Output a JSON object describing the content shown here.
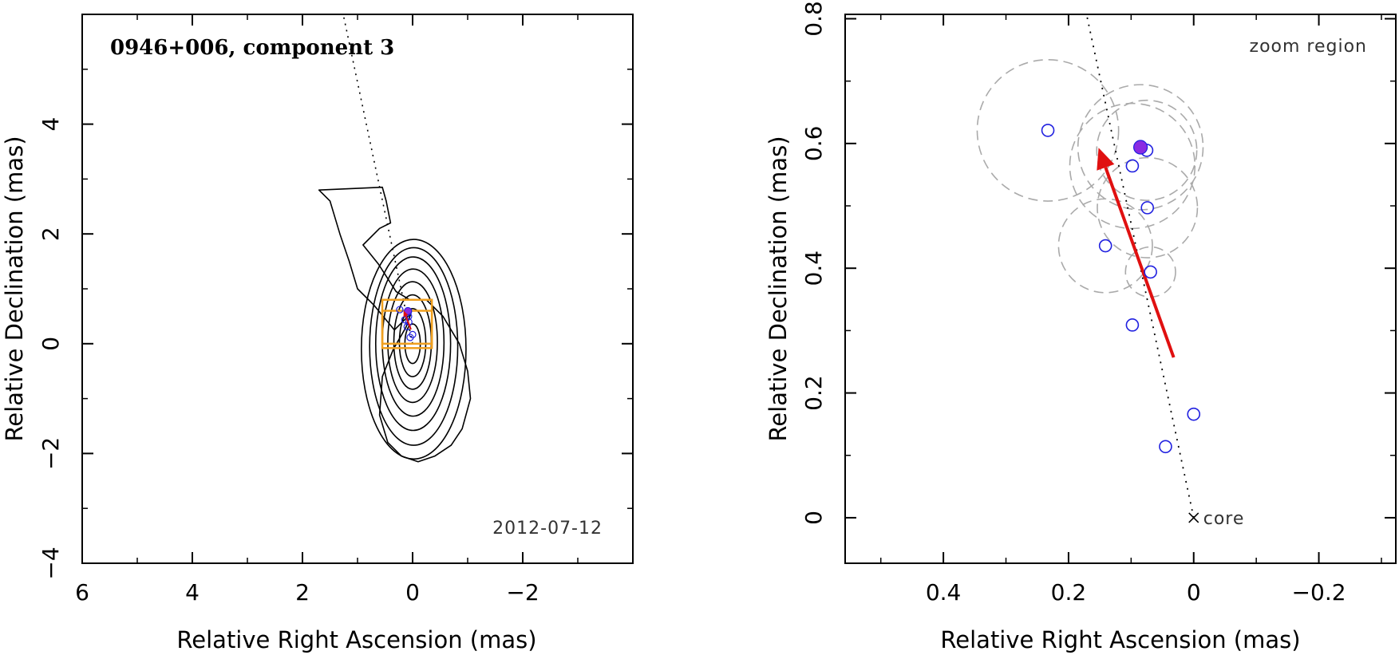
{
  "colors": {
    "axis": "#000000",
    "contour": "#000000",
    "box": "#f0a020",
    "arrow": "#e01010",
    "point": "#2020e0",
    "point_fill": "#8a2be2",
    "circle": "#aaaaaa"
  },
  "chart_data": [
    {
      "type": "contour",
      "title": "0946+006, component 3",
      "annotation": "2012-07-12",
      "xlabel": "Relative Right Ascension (mas)",
      "ylabel": "Relative Declination (mas)",
      "xlim": [
        6,
        -4
      ],
      "ylim": [
        -4,
        6
      ],
      "xticks": [
        6,
        4,
        2,
        0,
        -2
      ],
      "xtick_labels": [
        "6",
        "4",
        "2",
        "0",
        "−2"
      ],
      "yticks": [
        -4,
        -2,
        0,
        2,
        4
      ],
      "ytick_labels": [
        "−4",
        "−2",
        "0",
        "2",
        "4"
      ],
      "jet_direction": {
        "from": [
          0,
          0
        ],
        "to": [
          1.26,
          6.0
        ]
      },
      "outer_contour": [
        [
          0.03,
          0.55
        ],
        [
          0.33,
          0.25
        ],
        [
          0.7,
          0.7
        ],
        [
          1.0,
          1.0
        ],
        [
          1.15,
          1.5
        ],
        [
          1.32,
          2.0
        ],
        [
          1.5,
          2.6
        ],
        [
          1.7,
          2.8
        ],
        [
          0.55,
          2.85
        ],
        [
          0.48,
          2.6
        ],
        [
          0.4,
          2.2
        ],
        [
          0.6,
          2.1
        ],
        [
          0.9,
          1.8
        ],
        [
          0.62,
          1.45
        ],
        [
          0.3,
          0.95
        ],
        [
          0.05,
          0.8
        ],
        [
          -0.25,
          0.8
        ],
        [
          -0.55,
          0.5
        ],
        [
          -0.85,
          0.0
        ],
        [
          -1.0,
          -0.5
        ],
        [
          -1.05,
          -1.0
        ],
        [
          -0.9,
          -1.55
        ],
        [
          -0.7,
          -1.85
        ],
        [
          -0.4,
          -2.05
        ],
        [
          -0.1,
          -2.15
        ],
        [
          0.2,
          -2.05
        ],
        [
          0.45,
          -1.8
        ],
        [
          0.6,
          -1.3
        ],
        [
          0.55,
          -0.6
        ],
        [
          0.35,
          -0.1
        ],
        [
          0.12,
          0.3
        ]
      ],
      "contour_levels": [
        {
          "cx": -0.02,
          "cy": -0.1,
          "rx": 0.95,
          "ry": 2.0
        },
        {
          "cx": -0.02,
          "cy": -0.05,
          "rx": 0.8,
          "ry": 1.8
        },
        {
          "cx": -0.01,
          "cy": 0.0,
          "rx": 0.68,
          "ry": 1.58
        },
        {
          "cx": -0.01,
          "cy": 0.02,
          "rx": 0.56,
          "ry": 1.34
        },
        {
          "cx": 0.0,
          "cy": 0.03,
          "rx": 0.45,
          "ry": 1.1
        },
        {
          "cx": 0.0,
          "cy": 0.03,
          "rx": 0.34,
          "ry": 0.86
        },
        {
          "cx": 0.0,
          "cy": 0.02,
          "rx": 0.24,
          "ry": 0.62
        },
        {
          "cx": 0.0,
          "cy": 0.0,
          "rx": 0.14,
          "ry": 0.36
        }
      ],
      "zoom_box": {
        "x": [
          0.55,
          -0.35
        ],
        "y": [
          -0.08,
          0.8
        ]
      },
      "inner_box": {
        "x": [
          0.55,
          -0.35
        ],
        "y": [
          0.0,
          0.6
        ]
      },
      "arrow": {
        "from": [
          0.03,
          0.26
        ],
        "to": [
          0.16,
          0.6
        ]
      }
    },
    {
      "type": "scatter",
      "annotation": "zoom region",
      "core_label": "core",
      "xlabel": "Relative Right Ascension (mas)",
      "ylabel": "Relative Declination (mas)",
      "xlim": [
        0.557,
        -0.323
      ],
      "ylim": [
        -0.073,
        0.807
      ],
      "xticks": [
        0.4,
        0.2,
        0,
        -0.2
      ],
      "xtick_labels": [
        "0.4",
        "0.2",
        "0",
        "−0.2"
      ],
      "yticks": [
        0,
        0.2,
        0.4,
        0.6,
        0.8
      ],
      "ytick_labels": [
        "0",
        "0.2",
        "0.4",
        "0.6",
        "0.8"
      ],
      "points": [
        {
          "x": 0.233,
          "y": 0.621
        },
        {
          "x": 0.098,
          "y": 0.564
        },
        {
          "x": 0.075,
          "y": 0.589
        },
        {
          "x": 0.074,
          "y": 0.497
        },
        {
          "x": 0.141,
          "y": 0.436
        },
        {
          "x": 0.069,
          "y": 0.394
        },
        {
          "x": 0.098,
          "y": 0.309
        },
        {
          "x": 0.0,
          "y": 0.166
        },
        {
          "x": 0.045,
          "y": 0.114
        }
      ],
      "filled_point": {
        "x": 0.085,
        "y": 0.594
      },
      "error_circles": [
        {
          "x": 0.233,
          "y": 0.621,
          "r": 0.113
        },
        {
          "x": 0.098,
          "y": 0.564,
          "r": 0.1
        },
        {
          "x": 0.075,
          "y": 0.589,
          "r": 0.08
        },
        {
          "x": 0.074,
          "y": 0.497,
          "r": 0.08
        },
        {
          "x": 0.085,
          "y": 0.594,
          "r": 0.1
        },
        {
          "x": 0.141,
          "y": 0.436,
          "r": 0.075
        },
        {
          "x": 0.069,
          "y": 0.394,
          "r": 0.04
        }
      ],
      "arrow": {
        "from": [
          0.032,
          0.257
        ],
        "to": [
          0.152,
          0.593
        ]
      },
      "jet_direction": {
        "from": [
          0,
          0
        ],
        "to": [
          0.171,
          0.806
        ]
      },
      "core": {
        "x": 0,
        "y": 0
      }
    }
  ]
}
